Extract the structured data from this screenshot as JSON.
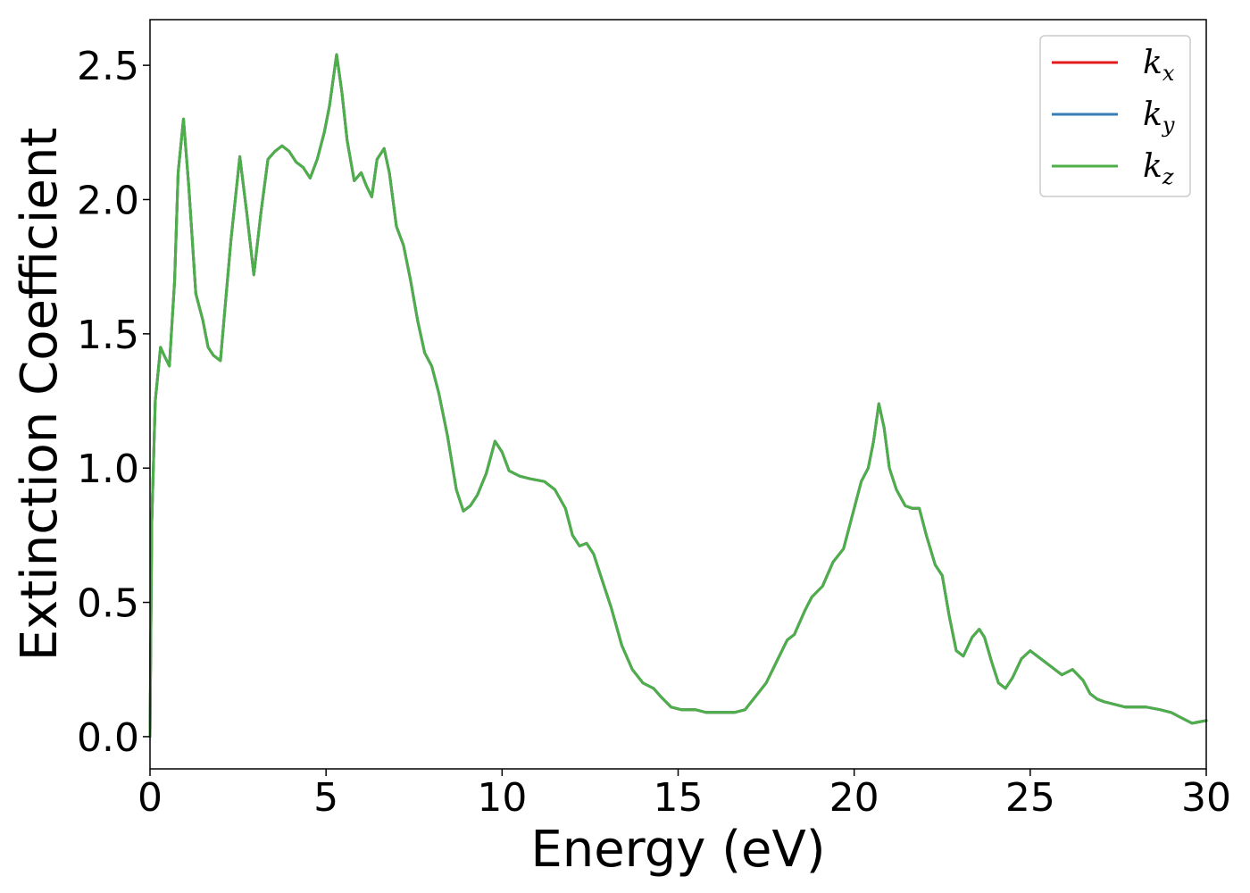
{
  "chart_data": {
    "type": "line",
    "title": "",
    "xlabel": "Energy (eV)",
    "ylabel": "Extinction Coefficient",
    "xlim": [
      0,
      30
    ],
    "ylim": [
      -0.12,
      2.67
    ],
    "xticks": [
      0,
      5,
      10,
      15,
      20,
      25,
      30
    ],
    "xtick_labels": [
      "0",
      "5",
      "10",
      "15",
      "20",
      "25",
      "30"
    ],
    "yticks": [
      0.0,
      0.5,
      1.0,
      1.5,
      2.0,
      2.5
    ],
    "ytick_labels": [
      "0.0",
      "0.5",
      "1.0",
      "1.5",
      "2.0",
      "2.5"
    ],
    "grid": false,
    "legend_position": "top-right",
    "legend": [
      {
        "base": "k",
        "sub": "x",
        "color": "#e41a1c"
      },
      {
        "base": "k",
        "sub": "y",
        "color": "#377eb8"
      },
      {
        "base": "k",
        "sub": "z",
        "color": "#4daf4a"
      }
    ],
    "x": [
      0,
      0.05,
      0.15,
      0.3,
      0.4,
      0.55,
      0.7,
      0.8,
      0.95,
      1.1,
      1.3,
      1.5,
      1.65,
      1.8,
      2.0,
      2.1,
      2.3,
      2.55,
      2.75,
      2.95,
      3.15,
      3.35,
      3.55,
      3.75,
      3.95,
      4.15,
      4.35,
      4.55,
      4.75,
      4.95,
      5.1,
      5.3,
      5.45,
      5.6,
      5.8,
      6.0,
      6.15,
      6.3,
      6.45,
      6.65,
      6.8,
      7.0,
      7.2,
      7.4,
      7.6,
      7.8,
      8.0,
      8.2,
      8.45,
      8.7,
      8.9,
      9.1,
      9.3,
      9.55,
      9.8,
      10.0,
      10.2,
      10.5,
      10.8,
      11.2,
      11.5,
      11.8,
      12.0,
      12.2,
      12.4,
      12.6,
      12.8,
      13.1,
      13.4,
      13.7,
      14.0,
      14.3,
      14.5,
      14.8,
      15.1,
      15.5,
      15.8,
      16.2,
      16.6,
      16.9,
      17.2,
      17.5,
      17.8,
      18.1,
      18.3,
      18.6,
      18.8,
      19.1,
      19.4,
      19.7,
      20.0,
      20.2,
      20.4,
      20.55,
      20.7,
      20.85,
      21.0,
      21.2,
      21.45,
      21.65,
      21.85,
      22.05,
      22.3,
      22.5,
      22.7,
      22.9,
      23.1,
      23.35,
      23.55,
      23.7,
      23.9,
      24.1,
      24.3,
      24.5,
      24.75,
      25.0,
      25.2,
      25.4,
      25.6,
      25.9,
      26.2,
      26.5,
      26.7,
      26.9,
      27.1,
      27.4,
      27.7,
      28.0,
      28.3,
      28.7,
      29.0,
      29.3,
      29.6,
      30.0
    ],
    "series": [
      {
        "values": [
          0.0,
          0.8,
          1.25,
          1.45,
          1.42,
          1.38,
          1.7,
          2.1,
          2.3,
          2.05,
          1.65,
          1.55,
          1.45,
          1.42,
          1.4,
          1.55,
          1.85,
          2.16,
          1.95,
          1.72,
          1.95,
          2.15,
          2.18,
          2.2,
          2.18,
          2.14,
          2.12,
          2.08,
          2.15,
          2.25,
          2.35,
          2.54,
          2.4,
          2.22,
          2.07,
          2.1,
          2.05,
          2.01,
          2.15,
          2.19,
          2.1,
          1.9,
          1.83,
          1.7,
          1.55,
          1.43,
          1.38,
          1.28,
          1.12,
          0.92,
          0.84,
          0.86,
          0.9,
          0.98,
          1.1,
          1.06,
          0.99,
          0.97,
          0.96,
          0.95,
          0.92,
          0.85,
          0.75,
          0.71,
          0.72,
          0.68,
          0.6,
          0.48,
          0.34,
          0.25,
          0.2,
          0.18,
          0.15,
          0.11,
          0.1,
          0.1,
          0.09,
          0.09,
          0.09,
          0.1,
          0.15,
          0.2,
          0.28,
          0.36,
          0.38,
          0.47,
          0.52,
          0.56,
          0.65,
          0.7,
          0.85,
          0.95,
          1.0,
          1.1,
          1.24,
          1.15,
          1.0,
          0.92,
          0.86,
          0.85,
          0.85,
          0.75,
          0.64,
          0.6,
          0.45,
          0.32,
          0.3,
          0.37,
          0.4,
          0.37,
          0.28,
          0.2,
          0.18,
          0.22,
          0.29,
          0.32,
          0.3,
          0.28,
          0.26,
          0.23,
          0.25,
          0.21,
          0.16,
          0.14,
          0.13,
          0.12,
          0.11,
          0.11,
          0.11,
          0.1,
          0.09,
          0.07,
          0.05,
          0.06
        ]
      },
      {
        "values": [
          0.0,
          0.8,
          1.25,
          1.45,
          1.42,
          1.38,
          1.7,
          2.1,
          2.3,
          2.05,
          1.65,
          1.55,
          1.45,
          1.42,
          1.4,
          1.55,
          1.85,
          2.16,
          1.95,
          1.72,
          1.95,
          2.15,
          2.18,
          2.2,
          2.18,
          2.14,
          2.12,
          2.08,
          2.15,
          2.25,
          2.35,
          2.54,
          2.4,
          2.22,
          2.07,
          2.1,
          2.05,
          2.01,
          2.15,
          2.19,
          2.1,
          1.9,
          1.83,
          1.7,
          1.55,
          1.43,
          1.38,
          1.28,
          1.12,
          0.92,
          0.84,
          0.86,
          0.9,
          0.98,
          1.1,
          1.06,
          0.99,
          0.97,
          0.96,
          0.95,
          0.92,
          0.85,
          0.75,
          0.71,
          0.72,
          0.68,
          0.6,
          0.48,
          0.34,
          0.25,
          0.2,
          0.18,
          0.15,
          0.11,
          0.1,
          0.1,
          0.09,
          0.09,
          0.09,
          0.1,
          0.15,
          0.2,
          0.28,
          0.36,
          0.38,
          0.47,
          0.52,
          0.56,
          0.65,
          0.7,
          0.85,
          0.95,
          1.0,
          1.1,
          1.24,
          1.15,
          1.0,
          0.92,
          0.86,
          0.85,
          0.85,
          0.75,
          0.64,
          0.6,
          0.45,
          0.32,
          0.3,
          0.37,
          0.4,
          0.37,
          0.28,
          0.2,
          0.18,
          0.22,
          0.29,
          0.32,
          0.3,
          0.28,
          0.26,
          0.23,
          0.25,
          0.21,
          0.16,
          0.14,
          0.13,
          0.12,
          0.11,
          0.11,
          0.11,
          0.1,
          0.09,
          0.07,
          0.05,
          0.06
        ]
      },
      {
        "values": [
          0.0,
          0.8,
          1.25,
          1.45,
          1.42,
          1.38,
          1.7,
          2.1,
          2.3,
          2.05,
          1.65,
          1.55,
          1.45,
          1.42,
          1.4,
          1.55,
          1.85,
          2.16,
          1.95,
          1.72,
          1.95,
          2.15,
          2.18,
          2.2,
          2.18,
          2.14,
          2.12,
          2.08,
          2.15,
          2.25,
          2.35,
          2.54,
          2.4,
          2.22,
          2.07,
          2.1,
          2.05,
          2.01,
          2.15,
          2.19,
          2.1,
          1.9,
          1.83,
          1.7,
          1.55,
          1.43,
          1.38,
          1.28,
          1.12,
          0.92,
          0.84,
          0.86,
          0.9,
          0.98,
          1.1,
          1.06,
          0.99,
          0.97,
          0.96,
          0.95,
          0.92,
          0.85,
          0.75,
          0.71,
          0.72,
          0.68,
          0.6,
          0.48,
          0.34,
          0.25,
          0.2,
          0.18,
          0.15,
          0.11,
          0.1,
          0.1,
          0.09,
          0.09,
          0.09,
          0.1,
          0.15,
          0.2,
          0.28,
          0.36,
          0.38,
          0.47,
          0.52,
          0.56,
          0.65,
          0.7,
          0.85,
          0.95,
          1.0,
          1.1,
          1.24,
          1.15,
          1.0,
          0.92,
          0.86,
          0.85,
          0.85,
          0.75,
          0.64,
          0.6,
          0.45,
          0.32,
          0.3,
          0.37,
          0.4,
          0.37,
          0.28,
          0.2,
          0.18,
          0.22,
          0.29,
          0.32,
          0.3,
          0.28,
          0.26,
          0.23,
          0.25,
          0.21,
          0.16,
          0.14,
          0.13,
          0.12,
          0.11,
          0.11,
          0.11,
          0.1,
          0.09,
          0.07,
          0.05,
          0.06
        ]
      }
    ]
  }
}
